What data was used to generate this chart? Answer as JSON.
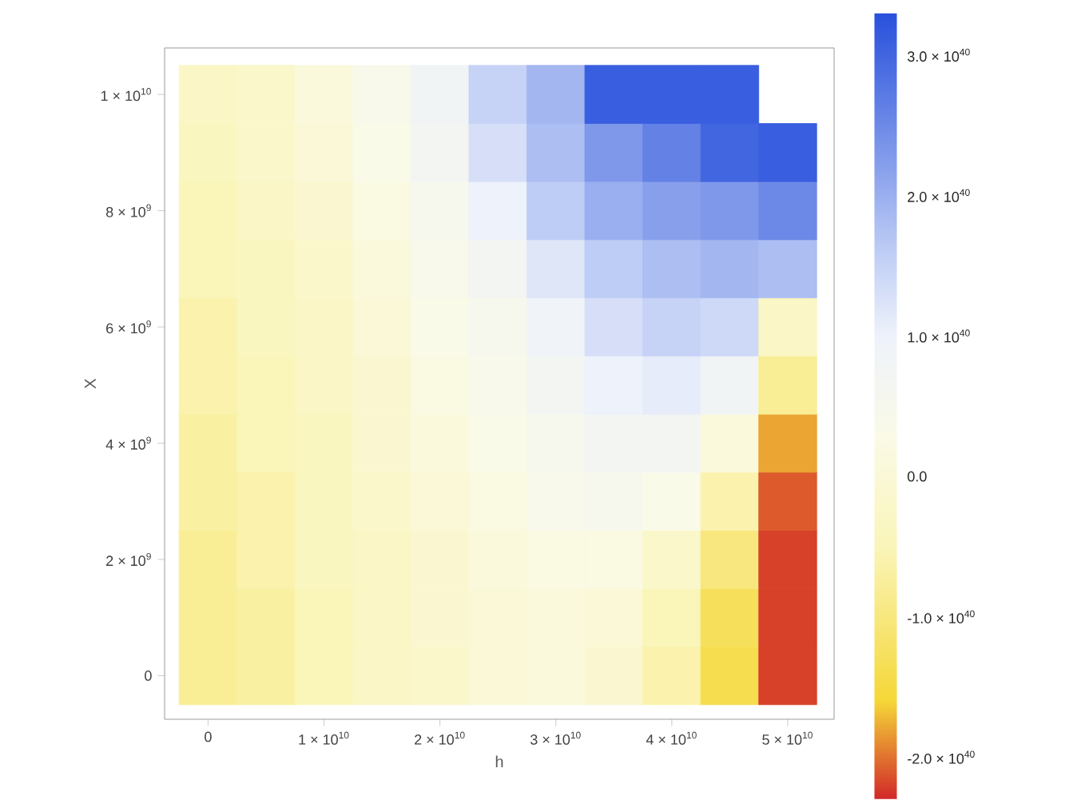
{
  "chart_data": {
    "type": "heatmap",
    "xlabel": "h",
    "ylabel": "X",
    "categories": [
      "0",
      null,
      "1 × 10$^{10}$",
      null,
      "2 × 10$^{10}$",
      null,
      "3 × 10$^{10}$",
      null,
      "4 × 10$^{10}$",
      null,
      "5 × 10$^{10}$"
    ],
    "y_categories": [
      "1 × 10$^{10}$",
      null,
      "8 × 10$^{9}$",
      null,
      "6 × 10$^{9}$",
      null,
      "4 × 10$^{9}$",
      null,
      "2 × 10$^{9}$",
      null,
      "0"
    ],
    "clim": [
      -2.3e+40,
      3.3e+40
    ],
    "cticks": [
      {
        "value": -2e+40,
        "label": "-2.0 × 10$^{40}$"
      },
      {
        "value": -1e+40,
        "label": "-1.0 × 10$^{40}$"
      },
      {
        "value": 0,
        "label": "0.0"
      },
      {
        "value": 1e+40,
        "label": "1.0 × 10$^{40}$"
      },
      {
        "value": 2e+40,
        "label": "2.0 × 10$^{40}$"
      },
      {
        "value": 3e+40,
        "label": "3.0 × 10$^{40}$"
      }
    ],
    "cells": [
      [
        -3e+39,
        -2e+39,
        1e+39,
        4e+39,
        8e+39,
        1.5e+40,
        1.9e+40,
        3.1e+40,
        3.1e+40,
        3.1e+40,
        null
      ],
      [
        -4e+39,
        -2e+39,
        0,
        3e+39,
        7e+39,
        1.3e+40,
        1.8e+40,
        2.3e+40,
        2.6e+40,
        3e+40,
        3.1e+40
      ],
      [
        -5e+39,
        -3e+39,
        -1e+39,
        2e+39,
        5e+39,
        1e+40,
        1.6e+40,
        2e+40,
        2.2e+40,
        2.3e+40,
        2.5e+40
      ],
      [
        -5e+39,
        -4e+39,
        -2e+39,
        1e+39,
        4e+39,
        7e+39,
        1.2e+40,
        1.6e+40,
        1.8e+40,
        1.9e+40,
        1.8e+40
      ],
      [
        -6e+39,
        -4e+39,
        -3e+39,
        0,
        3e+39,
        5e+39,
        9e+39,
        1.3e+40,
        1.5e+40,
        1.4e+40,
        -3e+39
      ],
      [
        -6e+39,
        -5e+39,
        -3e+39,
        -1e+39,
        2e+39,
        4e+39,
        7e+39,
        1e+40,
        1.1e+40,
        8e+39,
        -8e+39
      ],
      [
        -7e+39,
        -5e+39,
        -4e+39,
        -1e+39,
        1e+39,
        3e+39,
        5e+39,
        7e+39,
        7e+39,
        1e+39,
        -1.8e+40
      ],
      [
        -7e+39,
        -6e+39,
        -4e+39,
        -2e+39,
        0,
        2e+39,
        4e+39,
        5e+39,
        3e+39,
        -6e+39,
        -2.1e+40
      ],
      [
        -8e+39,
        -6e+39,
        -4e+39,
        -3e+39,
        -1e+39,
        1e+39,
        2e+39,
        2e+39,
        -2e+39,
        -1e+40,
        -2.2e+40
      ],
      [
        -8e+39,
        -7e+39,
        -5e+39,
        -3e+39,
        -1e+39,
        0,
        1e+39,
        0,
        -5e+39,
        -1.3e+40,
        -2.2e+40
      ],
      [
        -8e+39,
        -7e+39,
        -5e+39,
        -3e+39,
        -2e+39,
        0,
        1e+39,
        -1e+39,
        -6e+39,
        -1.4e+40,
        -2.2e+40
      ]
    ]
  }
}
